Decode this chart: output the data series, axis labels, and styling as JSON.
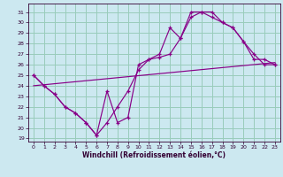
{
  "title": "",
  "xlabel": "Windchill (Refroidissement éolien,°C)",
  "bg_color": "#cce8f0",
  "grid_color": "#99ccbb",
  "line_color": "#880088",
  "xlim": [
    -0.5,
    23.5
  ],
  "ylim": [
    18.7,
    31.8
  ],
  "yticks": [
    19,
    20,
    21,
    22,
    23,
    24,
    25,
    26,
    27,
    28,
    29,
    30,
    31
  ],
  "xticks": [
    0,
    1,
    2,
    3,
    4,
    5,
    6,
    7,
    8,
    9,
    10,
    11,
    12,
    13,
    14,
    15,
    16,
    17,
    18,
    19,
    20,
    21,
    22,
    23
  ],
  "line1_x": [
    0,
    1,
    2,
    3,
    4,
    5,
    6,
    7,
    8,
    9,
    10,
    11,
    12,
    13,
    14,
    15,
    16,
    17,
    18,
    19,
    20,
    21,
    22,
    23
  ],
  "line1_y": [
    25.0,
    24.0,
    23.2,
    22.0,
    21.4,
    20.5,
    19.3,
    20.5,
    22.0,
    23.5,
    25.5,
    26.5,
    26.7,
    27.0,
    28.5,
    30.5,
    31.0,
    30.5,
    30.0,
    29.5,
    28.2,
    26.5,
    26.5,
    26.0
  ],
  "line2_x": [
    0,
    1,
    2,
    3,
    4,
    5,
    6,
    7,
    8,
    9,
    10,
    11,
    12,
    13,
    14,
    15,
    16,
    17,
    18,
    19,
    20,
    21,
    22,
    23
  ],
  "line2_y": [
    25.0,
    24.0,
    23.2,
    22.0,
    21.4,
    20.5,
    19.3,
    23.5,
    20.5,
    21.0,
    26.0,
    26.5,
    27.0,
    29.5,
    28.5,
    31.0,
    31.0,
    31.0,
    30.0,
    29.5,
    28.2,
    27.0,
    26.0,
    26.0
  ],
  "line3_x": [
    0,
    23
  ],
  "line3_y": [
    24.0,
    26.2
  ]
}
